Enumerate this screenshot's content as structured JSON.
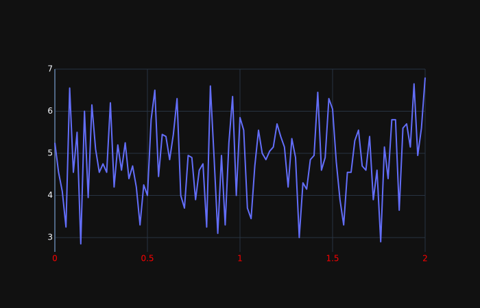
{
  "chart_data": {
    "type": "line",
    "x": [
      0,
      0.02,
      0.04,
      0.06,
      0.08,
      0.1,
      0.12,
      0.14,
      0.16,
      0.18,
      0.2,
      0.22,
      0.24,
      0.26,
      0.28,
      0.3,
      0.32,
      0.34,
      0.36,
      0.38,
      0.4,
      0.42,
      0.44,
      0.46,
      0.48,
      0.5,
      0.52,
      0.54,
      0.56,
      0.58,
      0.6,
      0.62,
      0.64,
      0.66,
      0.68,
      0.7,
      0.72,
      0.74,
      0.76,
      0.78,
      0.8,
      0.82,
      0.84,
      0.86,
      0.88,
      0.9,
      0.92,
      0.94,
      0.96,
      0.98,
      1,
      1.02,
      1.04,
      1.06,
      1.08,
      1.1,
      1.12,
      1.14,
      1.16,
      1.18,
      1.2,
      1.22,
      1.24,
      1.26,
      1.28,
      1.3,
      1.32,
      1.34,
      1.36,
      1.38,
      1.4,
      1.42,
      1.44,
      1.46,
      1.48,
      1.5,
      1.52,
      1.54,
      1.56,
      1.58,
      1.6,
      1.62,
      1.64,
      1.66,
      1.68,
      1.7,
      1.72,
      1.74,
      1.76,
      1.78,
      1.8,
      1.82,
      1.84,
      1.86,
      1.88,
      1.9,
      1.92,
      1.94,
      1.96,
      1.98,
      2
    ],
    "values": [
      5.25,
      4.55,
      4.1,
      3.25,
      6.55,
      4.55,
      5.5,
      2.85,
      6.0,
      3.95,
      6.15,
      5.1,
      4.55,
      4.75,
      4.55,
      6.2,
      4.2,
      5.2,
      4.6,
      5.25,
      4.4,
      4.7,
      4.2,
      3.3,
      4.25,
      4.0,
      5.8,
      6.5,
      4.45,
      5.45,
      5.4,
      4.85,
      5.45,
      6.3,
      4.0,
      3.7,
      4.95,
      4.9,
      3.9,
      4.6,
      4.75,
      3.25,
      6.6,
      4.9,
      3.1,
      4.95,
      3.3,
      5.25,
      6.35,
      4.0,
      5.85,
      5.55,
      3.7,
      3.45,
      4.7,
      5.55,
      5.0,
      4.85,
      5.05,
      5.15,
      5.7,
      5.4,
      5.15,
      4.2,
      5.35,
      4.9,
      3.0,
      4.3,
      4.15,
      4.85,
      4.95,
      6.45,
      4.6,
      4.9,
      6.3,
      6.05,
      4.8,
      3.9,
      3.3,
      4.55,
      4.55,
      5.3,
      5.55,
      4.7,
      4.6,
      5.4,
      3.9,
      4.6,
      2.9,
      5.15,
      4.4,
      5.8,
      5.8,
      3.65,
      5.6,
      5.7,
      5.15,
      6.65,
      4.95,
      5.6,
      6.8
    ],
    "color": "#636efa",
    "xlim": [
      0,
      2
    ],
    "xticks": [
      0,
      0.5,
      1,
      1.5,
      2
    ],
    "xtick_color": "#ff0000",
    "ylim": [
      2.66,
      7
    ],
    "yticks": [
      3,
      4,
      5,
      6,
      7
    ],
    "ytick_color": "#f2f5fa",
    "grid": true
  }
}
